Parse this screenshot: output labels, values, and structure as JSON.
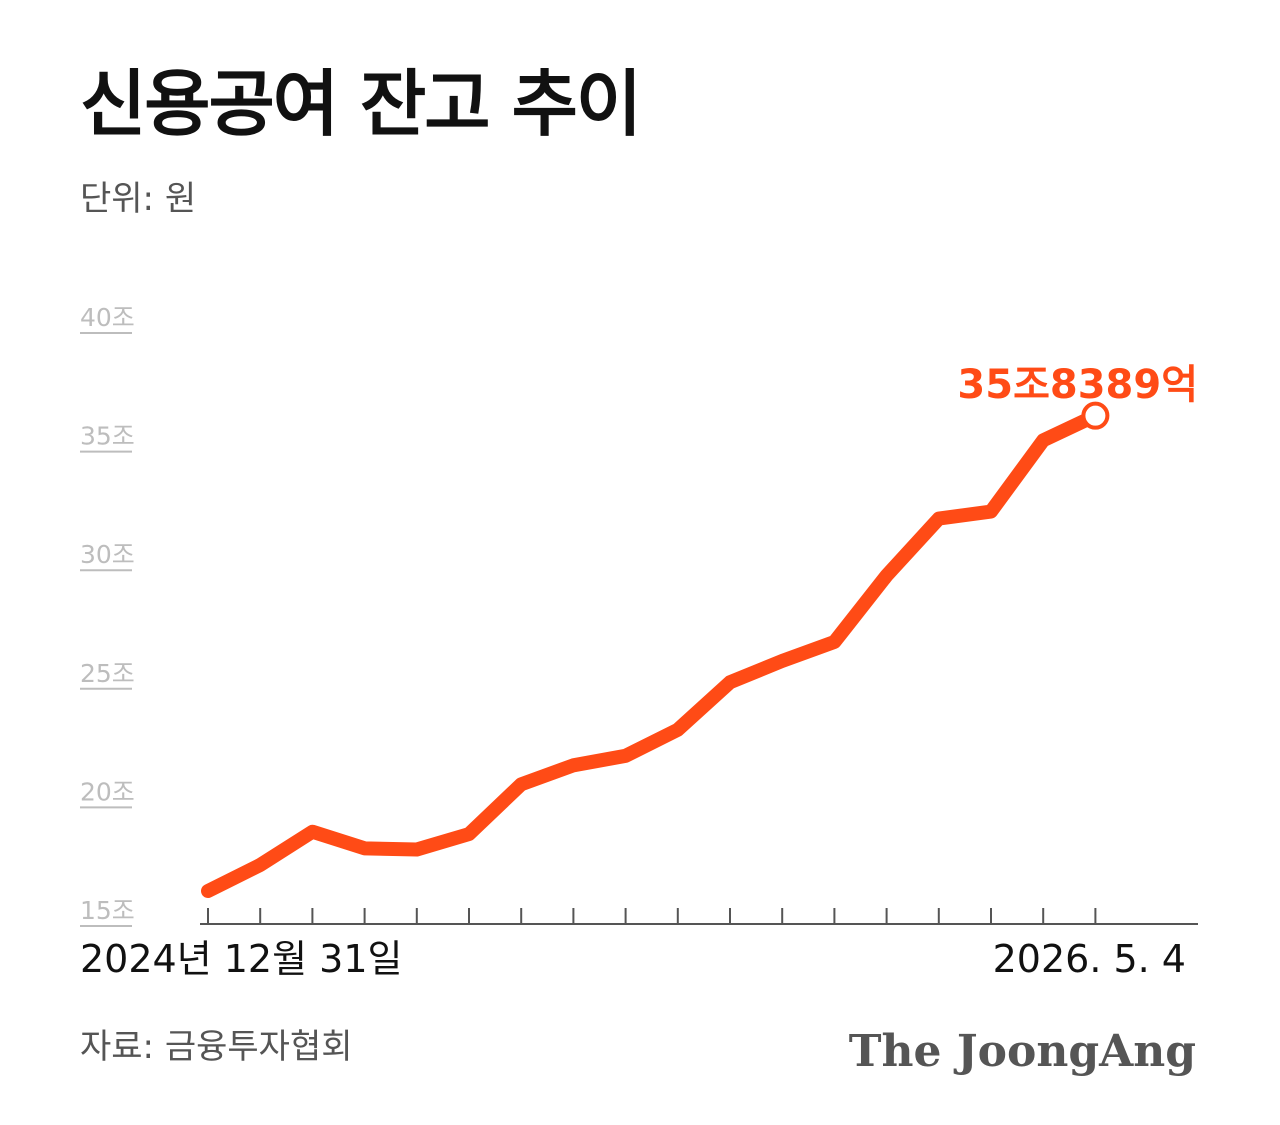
{
  "title": "신용공여 잔고 추이",
  "unit": "단위: 원",
  "source": "자료: 금융투자협회",
  "brand": "The JoongAng",
  "colors": {
    "line": "#ff4b16",
    "axis": "#555555",
    "ytick": "#bdbdbd"
  },
  "chart_data": {
    "type": "line",
    "title": "신용공여 잔고 추이",
    "ylabel": "",
    "ylim": [
      15,
      40
    ],
    "yticks": [
      15,
      20,
      25,
      30,
      35,
      40
    ],
    "ytick_labels": [
      "15조",
      "20조",
      "25조",
      "30조",
      "35조",
      "40조"
    ],
    "x_start_label": "2024년 12월 31일",
    "x_end_label": "2026. 5. 4",
    "end_value_label": "35조8389억",
    "grid": false,
    "series": [
      {
        "values": [
          15.8,
          16.9,
          18.3,
          17.6,
          17.55,
          18.2,
          20.3,
          21.1,
          21.5,
          22.6,
          24.6,
          25.5,
          26.3,
          29.1,
          31.5,
          31.8,
          34.8,
          35.84
        ]
      }
    ]
  }
}
